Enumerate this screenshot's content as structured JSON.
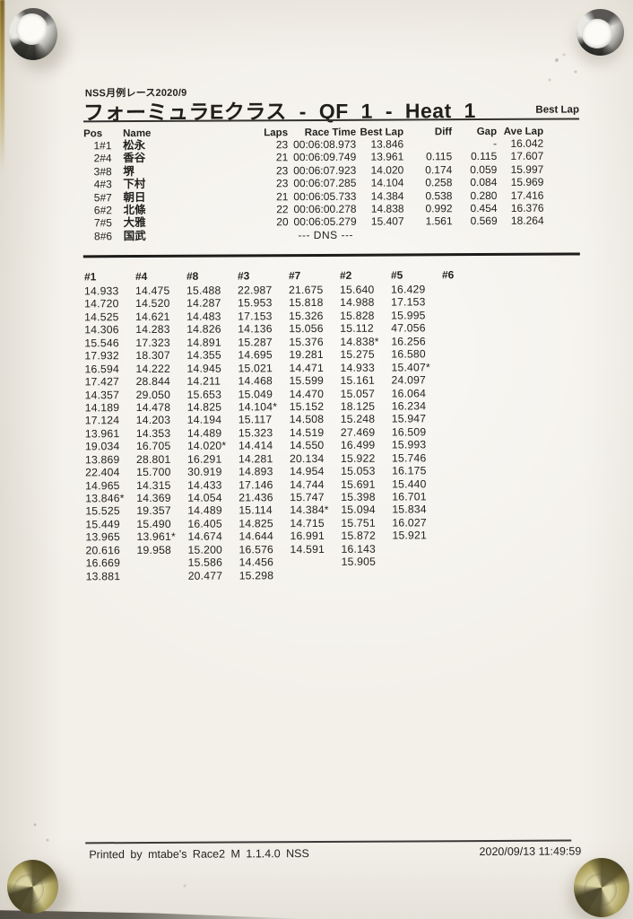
{
  "meta": {
    "series_label": "NSS月例レース2020/9",
    "title": "フォーミュラEクラス - QF 1 - Heat 1",
    "best_lap_label": "Best Lap",
    "footer_left": "Printed by mtabe's Race2 M 1.1.4.0 NSS",
    "footer_right": "2020/09/13 11:49:59"
  },
  "scene": {
    "fasteners": [
      "chrome-screw-top-left",
      "chrome-screw-top-right",
      "brass-screw-bottom-left",
      "brass-screw-bottom-right"
    ],
    "colors": {
      "paper": "#f3f0ea",
      "ink": "#201f1c",
      "chrome": "#c9c8c3",
      "brass": "#a89b55",
      "board_edge": "#514d45"
    }
  },
  "results": {
    "headers": {
      "pos": "Pos",
      "car": "",
      "name": "Name",
      "laps": "Laps",
      "race_time": "Race Time",
      "best_lap": "Best Lap",
      "diff": "Diff",
      "gap": "Gap",
      "ave_lap": "Ave Lap"
    },
    "rows": [
      {
        "pos": "1",
        "car": "#1",
        "name": "松永",
        "laps": "23",
        "race_time": "00:06:08.973",
        "best_lap": "13.846",
        "diff": "",
        "gap": "-",
        "ave_lap": "16.042"
      },
      {
        "pos": "2",
        "car": "#4",
        "name": "香谷",
        "laps": "21",
        "race_time": "00:06:09.749",
        "best_lap": "13.961",
        "diff": "0.115",
        "gap": "0.115",
        "ave_lap": "17.607"
      },
      {
        "pos": "3",
        "car": "#8",
        "name": "堺",
        "laps": "23",
        "race_time": "00:06:07.923",
        "best_lap": "14.020",
        "diff": "0.174",
        "gap": "0.059",
        "ave_lap": "15.997"
      },
      {
        "pos": "4",
        "car": "#3",
        "name": "下村",
        "laps": "23",
        "race_time": "00:06:07.285",
        "best_lap": "14.104",
        "diff": "0.258",
        "gap": "0.084",
        "ave_lap": "15.969"
      },
      {
        "pos": "5",
        "car": "#7",
        "name": "朝日",
        "laps": "21",
        "race_time": "00:06:05.733",
        "best_lap": "14.384",
        "diff": "0.538",
        "gap": "0.280",
        "ave_lap": "17.416"
      },
      {
        "pos": "6",
        "car": "#2",
        "name": "北條",
        "laps": "22",
        "race_time": "00:06:00.278",
        "best_lap": "14.838",
        "diff": "0.992",
        "gap": "0.454",
        "ave_lap": "16.376"
      },
      {
        "pos": "7",
        "car": "#5",
        "name": "大雅",
        "laps": "20",
        "race_time": "00:06:05.279",
        "best_lap": "15.407",
        "diff": "1.561",
        "gap": "0.569",
        "ave_lap": "18.264"
      },
      {
        "pos": "8",
        "car": "#6",
        "name": "国武",
        "dns": "--- DNS ---"
      }
    ]
  },
  "lap_chart": {
    "columns": [
      {
        "car": "#1",
        "laps": [
          "14.933",
          "14.720",
          "14.525",
          "14.306",
          "15.546",
          "17.932",
          "16.594",
          "17.427",
          "14.357",
          "14.189",
          "17.124",
          "13.961",
          "19.034",
          "13.869",
          "22.404",
          "14.965",
          "13.846*",
          "15.525",
          "15.449",
          "13.965",
          "20.616",
          "16.669",
          "13.881"
        ]
      },
      {
        "car": "#4",
        "laps": [
          "14.475",
          "14.520",
          "14.621",
          "14.283",
          "17.323",
          "18.307",
          "14.222",
          "28.844",
          "29.050",
          "14.478",
          "14.203",
          "14.353",
          "16.705",
          "28.801",
          "15.700",
          "14.315",
          "14.369",
          "19.357",
          "15.490",
          "13.961*",
          "19.958"
        ]
      },
      {
        "car": "#8",
        "laps": [
          "15.488",
          "14.287",
          "14.483",
          "14.826",
          "14.891",
          "14.355",
          "14.945",
          "14.211",
          "15.653",
          "14.825",
          "14.194",
          "14.489",
          "14.020*",
          "16.291",
          "30.919",
          "14.433",
          "14.054",
          "14.489",
          "16.405",
          "14.674",
          "15.200",
          "15.586",
          "20.477"
        ]
      },
      {
        "car": "#3",
        "laps": [
          "22.987",
          "15.953",
          "17.153",
          "14.136",
          "15.287",
          "14.695",
          "15.021",
          "14.468",
          "15.049",
          "14.104*",
          "15.117",
          "15.323",
          "14.414",
          "14.281",
          "14.893",
          "17.146",
          "21.436",
          "15.114",
          "14.825",
          "14.644",
          "16.576",
          "14.456",
          "15.298"
        ]
      },
      {
        "car": "#7",
        "laps": [
          "21.675",
          "15.818",
          "15.326",
          "15.056",
          "15.376",
          "19.281",
          "14.471",
          "15.599",
          "14.470",
          "15.152",
          "14.508",
          "14.519",
          "14.550",
          "20.134",
          "14.954",
          "14.744",
          "15.747",
          "14.384*",
          "14.715",
          "16.991",
          "14.591"
        ]
      },
      {
        "car": "#2",
        "laps": [
          "15.640",
          "14.988",
          "15.828",
          "15.112",
          "14.838*",
          "15.275",
          "14.933",
          "15.161",
          "15.057",
          "18.125",
          "15.248",
          "27.469",
          "16.499",
          "15.922",
          "15.053",
          "15.691",
          "15.398",
          "15.094",
          "15.751",
          "15.872",
          "16.143",
          "15.905"
        ]
      },
      {
        "car": "#5",
        "laps": [
          "16.429",
          "17.153",
          "15.995",
          "47.056",
          "16.256",
          "16.580",
          "15.407*",
          "24.097",
          "16.064",
          "16.234",
          "15.947",
          "16.509",
          "15.993",
          "15.746",
          "16.175",
          "15.440",
          "16.701",
          "15.834",
          "16.027",
          "15.921"
        ]
      },
      {
        "car": "#6",
        "laps": []
      }
    ]
  }
}
